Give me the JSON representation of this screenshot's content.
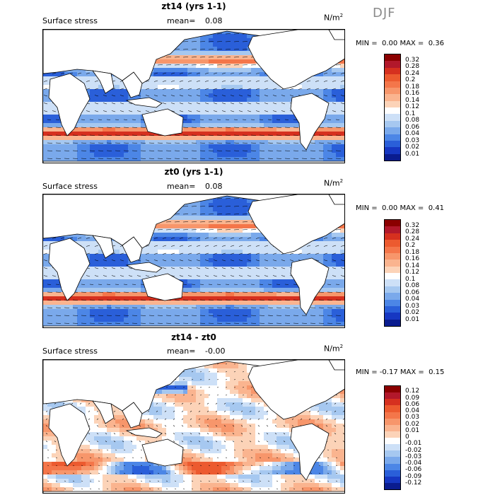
{
  "season": "DJF",
  "panels": [
    {
      "title": "zt14 (yrs 1-1)",
      "subtitle": "Surface stress",
      "mean_label": "mean=",
      "mean_value": "0.08",
      "units": "N/m",
      "units_exp": "2",
      "min_label": "MIN =",
      "min_value": "0.00",
      "max_label": "MAX =",
      "max_value": "0.36",
      "colorbar_ticks": [
        "0.32",
        "0.28",
        "0.24",
        "0.2",
        "0.18",
        "0.16",
        "0.14",
        "0.12",
        "0.1",
        "0.08",
        "0.06",
        "0.04",
        "0.03",
        "0.02",
        "0.01"
      ],
      "colorbar_colors": [
        "#8b0000",
        "#b2182b",
        "#d6301f",
        "#ec5a2f",
        "#f4764a",
        "#f7966b",
        "#fab48f",
        "#fcd3b8",
        "#ffffff",
        "#cde0f7",
        "#a6c8f0",
        "#7aa9eb",
        "#4c86e6",
        "#2a5fd9",
        "#1637c2",
        "#0a1c8f"
      ],
      "diverging": false
    },
    {
      "title": "zt0 (yrs 1-1)",
      "subtitle": "Surface stress",
      "mean_label": "mean=",
      "mean_value": "0.08",
      "units": "N/m",
      "units_exp": "2",
      "min_label": "MIN =",
      "min_value": "0.00",
      "max_label": "MAX =",
      "max_value": "0.41",
      "colorbar_ticks": [
        "0.32",
        "0.28",
        "0.24",
        "0.2",
        "0.18",
        "0.16",
        "0.14",
        "0.12",
        "0.1",
        "0.08",
        "0.06",
        "0.04",
        "0.03",
        "0.02",
        "0.01"
      ],
      "colorbar_colors": [
        "#8b0000",
        "#b2182b",
        "#d6301f",
        "#ec5a2f",
        "#f4764a",
        "#f7966b",
        "#fab48f",
        "#fcd3b8",
        "#ffffff",
        "#cde0f7",
        "#a6c8f0",
        "#7aa9eb",
        "#4c86e6",
        "#2a5fd9",
        "#1637c2",
        "#0a1c8f"
      ],
      "diverging": false
    },
    {
      "title": "zt14 - zt0",
      "subtitle": "Surface stress",
      "mean_label": "mean=",
      "mean_value": "-0.00",
      "units": "N/m",
      "units_exp": "2",
      "min_label": "MIN =",
      "min_value": "-0.17",
      "max_label": "MAX =",
      "max_value": "0.15",
      "colorbar_ticks": [
        "0.12",
        "0.09",
        "0.06",
        "0.04",
        "0.03",
        "0.02",
        "0.01",
        "0",
        "-0.01",
        "-0.02",
        "-0.03",
        "-0.04",
        "-0.06",
        "-0.09",
        "-0.12"
      ],
      "colorbar_colors": [
        "#8b0000",
        "#b2182b",
        "#d6301f",
        "#ec5a2f",
        "#f4764a",
        "#f7966b",
        "#fab48f",
        "#fcd3b8",
        "#ffffff",
        "#cde0f7",
        "#a6c8f0",
        "#7aa9eb",
        "#4c86e6",
        "#2a5fd9",
        "#1637c2",
        "#0a1c8f"
      ],
      "diverging": true
    }
  ]
}
